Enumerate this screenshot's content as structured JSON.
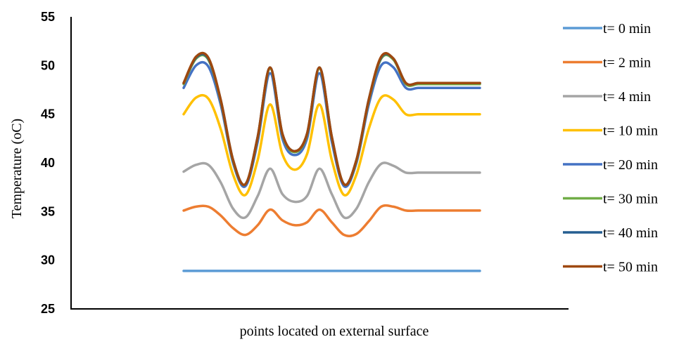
{
  "chart_data": {
    "type": "line",
    "title": "",
    "xlabel": "points located on external surface",
    "ylabel": "Temperature (oC)",
    "ylim": [
      25,
      55
    ],
    "yticks": [
      "25",
      "30",
      "35",
      "40",
      "45",
      "50",
      "55"
    ],
    "grid": false,
    "legend_position": "right",
    "x": [
      1,
      2,
      3,
      4,
      5,
      6,
      7,
      8,
      9,
      10,
      11,
      12,
      13,
      14,
      15,
      16,
      17,
      18,
      19,
      20,
      21,
      22,
      23,
      24,
      25
    ],
    "series": [
      {
        "name": "t= 0 min",
        "color": "#5B9BD5",
        "values": [
          28.9,
          28.9,
          28.9,
          28.9,
          28.9,
          28.9,
          28.9,
          28.9,
          28.9,
          28.9,
          28.9,
          28.9,
          28.9,
          28.9,
          28.9,
          28.9,
          28.9,
          28.9,
          28.9,
          28.9,
          28.9,
          28.9,
          28.9,
          28.9,
          28.9
        ]
      },
      {
        "name": "t= 2 min",
        "color": "#ED7D31",
        "values": [
          35.1,
          35.5,
          35.5,
          34.6,
          33.3,
          32.6,
          33.6,
          35.2,
          34.1,
          33.6,
          33.9,
          35.2,
          33.9,
          32.6,
          32.7,
          34.0,
          35.5,
          35.5,
          35.1,
          35.1,
          35.1,
          35.1,
          35.1,
          35.1,
          35.1
        ]
      },
      {
        "name": "t= 4 min",
        "color": "#A5A5A5",
        "values": [
          39.1,
          39.8,
          39.8,
          38.0,
          35.3,
          34.4,
          36.6,
          39.4,
          36.8,
          36.0,
          36.6,
          39.4,
          36.8,
          34.4,
          35.3,
          38.0,
          39.9,
          39.7,
          39.0,
          39.0,
          39.0,
          39.0,
          39.0,
          39.0,
          39.0
        ]
      },
      {
        "name": "t= 10 min",
        "color": "#FFC000",
        "values": [
          45.0,
          46.7,
          46.6,
          43.5,
          38.8,
          36.7,
          40.3,
          46.0,
          40.9,
          39.3,
          40.9,
          46.0,
          40.3,
          36.7,
          38.8,
          43.5,
          46.7,
          46.5,
          45.0,
          45.0,
          45.0,
          45.0,
          45.0,
          45.0,
          45.0
        ]
      },
      {
        "name": "t= 20 min",
        "color": "#4472C4",
        "values": [
          47.7,
          50.0,
          49.9,
          46.0,
          40.0,
          37.6,
          42.2,
          49.2,
          42.5,
          40.8,
          42.5,
          49.2,
          42.2,
          37.6,
          40.0,
          46.0,
          50.0,
          49.8,
          47.7,
          47.7,
          47.7,
          47.7,
          47.7,
          47.7,
          47.7
        ]
      },
      {
        "name": "t= 30 min",
        "color": "#70AD47",
        "values": [
          48.1,
          50.7,
          50.6,
          46.4,
          40.2,
          37.8,
          42.6,
          49.7,
          42.9,
          41.1,
          42.9,
          49.7,
          42.6,
          37.8,
          40.2,
          46.4,
          50.7,
          50.6,
          48.1,
          48.1,
          48.1,
          48.1,
          48.1,
          48.1,
          48.1
        ]
      },
      {
        "name": "t= 40 min",
        "color": "#255E91",
        "values": [
          48.2,
          50.8,
          50.7,
          46.5,
          40.3,
          37.8,
          42.7,
          49.8,
          43.0,
          41.2,
          43.0,
          49.8,
          42.7,
          37.8,
          40.3,
          46.5,
          50.8,
          50.7,
          48.2,
          48.2,
          48.2,
          48.2,
          48.2,
          48.2,
          48.2
        ]
      },
      {
        "name": "t= 50 min",
        "color": "#9E480E",
        "values": [
          48.2,
          50.9,
          50.8,
          46.5,
          40.3,
          37.8,
          42.7,
          49.8,
          43.0,
          41.2,
          43.0,
          49.8,
          42.7,
          37.8,
          40.3,
          46.5,
          50.9,
          50.7,
          48.2,
          48.2,
          48.2,
          48.2,
          48.2,
          48.2,
          48.2
        ]
      }
    ]
  }
}
